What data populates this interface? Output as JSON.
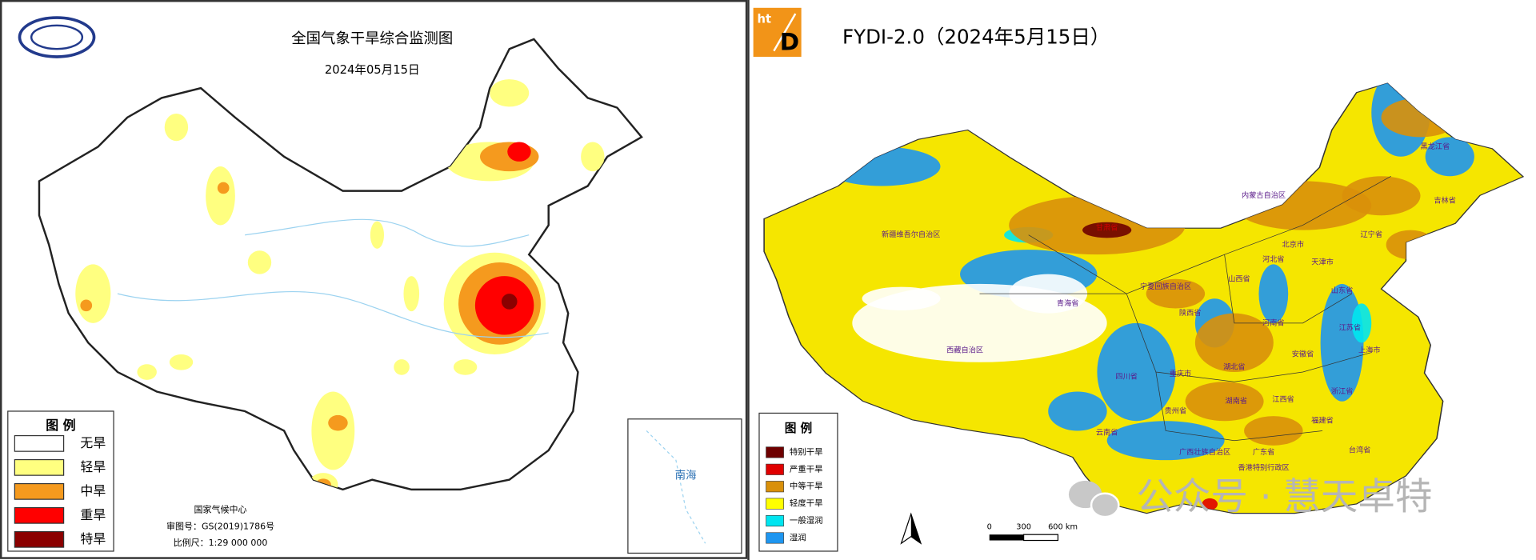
{
  "left_panel": {
    "title": "全国气象干旱综合监测图",
    "date": "2024年05月15日",
    "legend": {
      "title": "图 例",
      "items": [
        {
          "label": "无旱",
          "color": "#ffffff"
        },
        {
          "label": "轻旱",
          "color": "#ffff80"
        },
        {
          "label": "中旱",
          "color": "#f59a1e"
        },
        {
          "label": "重旱",
          "color": "#ff0000"
        },
        {
          "label": "特旱",
          "color": "#8b0000"
        }
      ]
    },
    "credits": [
      "国家气候中心",
      "审图号：GS(2019)1786号",
      "比例尺：1:29 000 000"
    ],
    "inset_label": "南海"
  },
  "right_panel": {
    "logo": {
      "top": "ht",
      "bottom": "D"
    },
    "title": "FYDI-2.0（2024年5月15日）",
    "legend": {
      "title": "图 例",
      "items": [
        {
          "label": "特别干旱",
          "color": "#6e0000"
        },
        {
          "label": "严重干旱",
          "color": "#e00000"
        },
        {
          "label": "中等干旱",
          "color": "#d9900a"
        },
        {
          "label": "轻度干旱",
          "color": "#ffff00"
        },
        {
          "label": "一般湿润",
          "color": "#00e5f0"
        },
        {
          "label": "湿润",
          "color": "#1e96f0"
        }
      ]
    },
    "scale_labels": [
      "0",
      "300",
      "600 km"
    ],
    "province_labels": [
      "黑龙江省",
      "吉林省",
      "辽宁省",
      "内蒙古自治区",
      "新疆维吾尔自治区",
      "甘肃省",
      "宁夏回族自治区",
      "青海省",
      "西藏自治区",
      "陕西省",
      "山西省",
      "河北省",
      "北京市",
      "天津市",
      "山东省",
      "河南省",
      "江苏省",
      "上海市",
      "安徽省",
      "湖北省",
      "重庆市",
      "四川省",
      "浙江省",
      "湖南省",
      "江西省",
      "贵州省",
      "福建省",
      "云南省",
      "广西壮族自治区",
      "广东省",
      "台湾省",
      "香港特别行政区"
    ]
  },
  "watermark": "公众号 · 慧天卓特"
}
